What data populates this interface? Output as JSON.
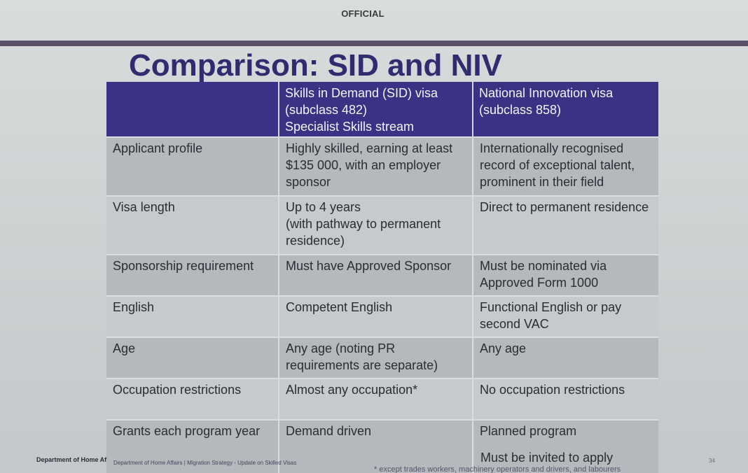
{
  "header": {
    "classification": "OFFICIAL",
    "title": "Comparison: SID and NIV"
  },
  "table": {
    "columns": [
      "",
      "Skills in Demand (SID) visa\n(subclass 482)\nSpecialist Skills stream",
      "National Innovation visa\n(subclass 858)"
    ],
    "rows": [
      [
        "Applicant profile",
        "Highly skilled, earning at least\n$135 000, with an employer\nsponsor",
        "Internationally recognised\nrecord of exceptional talent,\nprominent in their field"
      ],
      [
        "Visa length",
        "Up to 4 years\n(with pathway to permanent\nresidence)",
        "Direct to permanent residence"
      ],
      [
        "Sponsorship requirement",
        "Must have Approved Sponsor",
        "Must be nominated via\nApproved Form 1000"
      ],
      [
        "English",
        "Competent English",
        "Functional English or pay\nsecond VAC"
      ],
      [
        "Age",
        "Any age (noting PR\nrequirements are separate)",
        "Any age"
      ],
      [
        "Occupation restrictions",
        "Almost any occupation*",
        "No occupation restrictions"
      ],
      [
        "Grants each program year",
        "Demand driven",
        "Planned program"
      ]
    ],
    "extra_note": "Must be invited to apply"
  },
  "footer": {
    "left": "Department of Home Af",
    "center": "Department of Home Affairs | Migration Strategy - Update on Skilled Visas",
    "footnote": "* except trades workers, machinery operators and drivers, and labourers",
    "page_number": "34"
  },
  "colors": {
    "title": "#2f2c6f",
    "header_row": "#3b3286",
    "rule": "#5a4f66"
  }
}
